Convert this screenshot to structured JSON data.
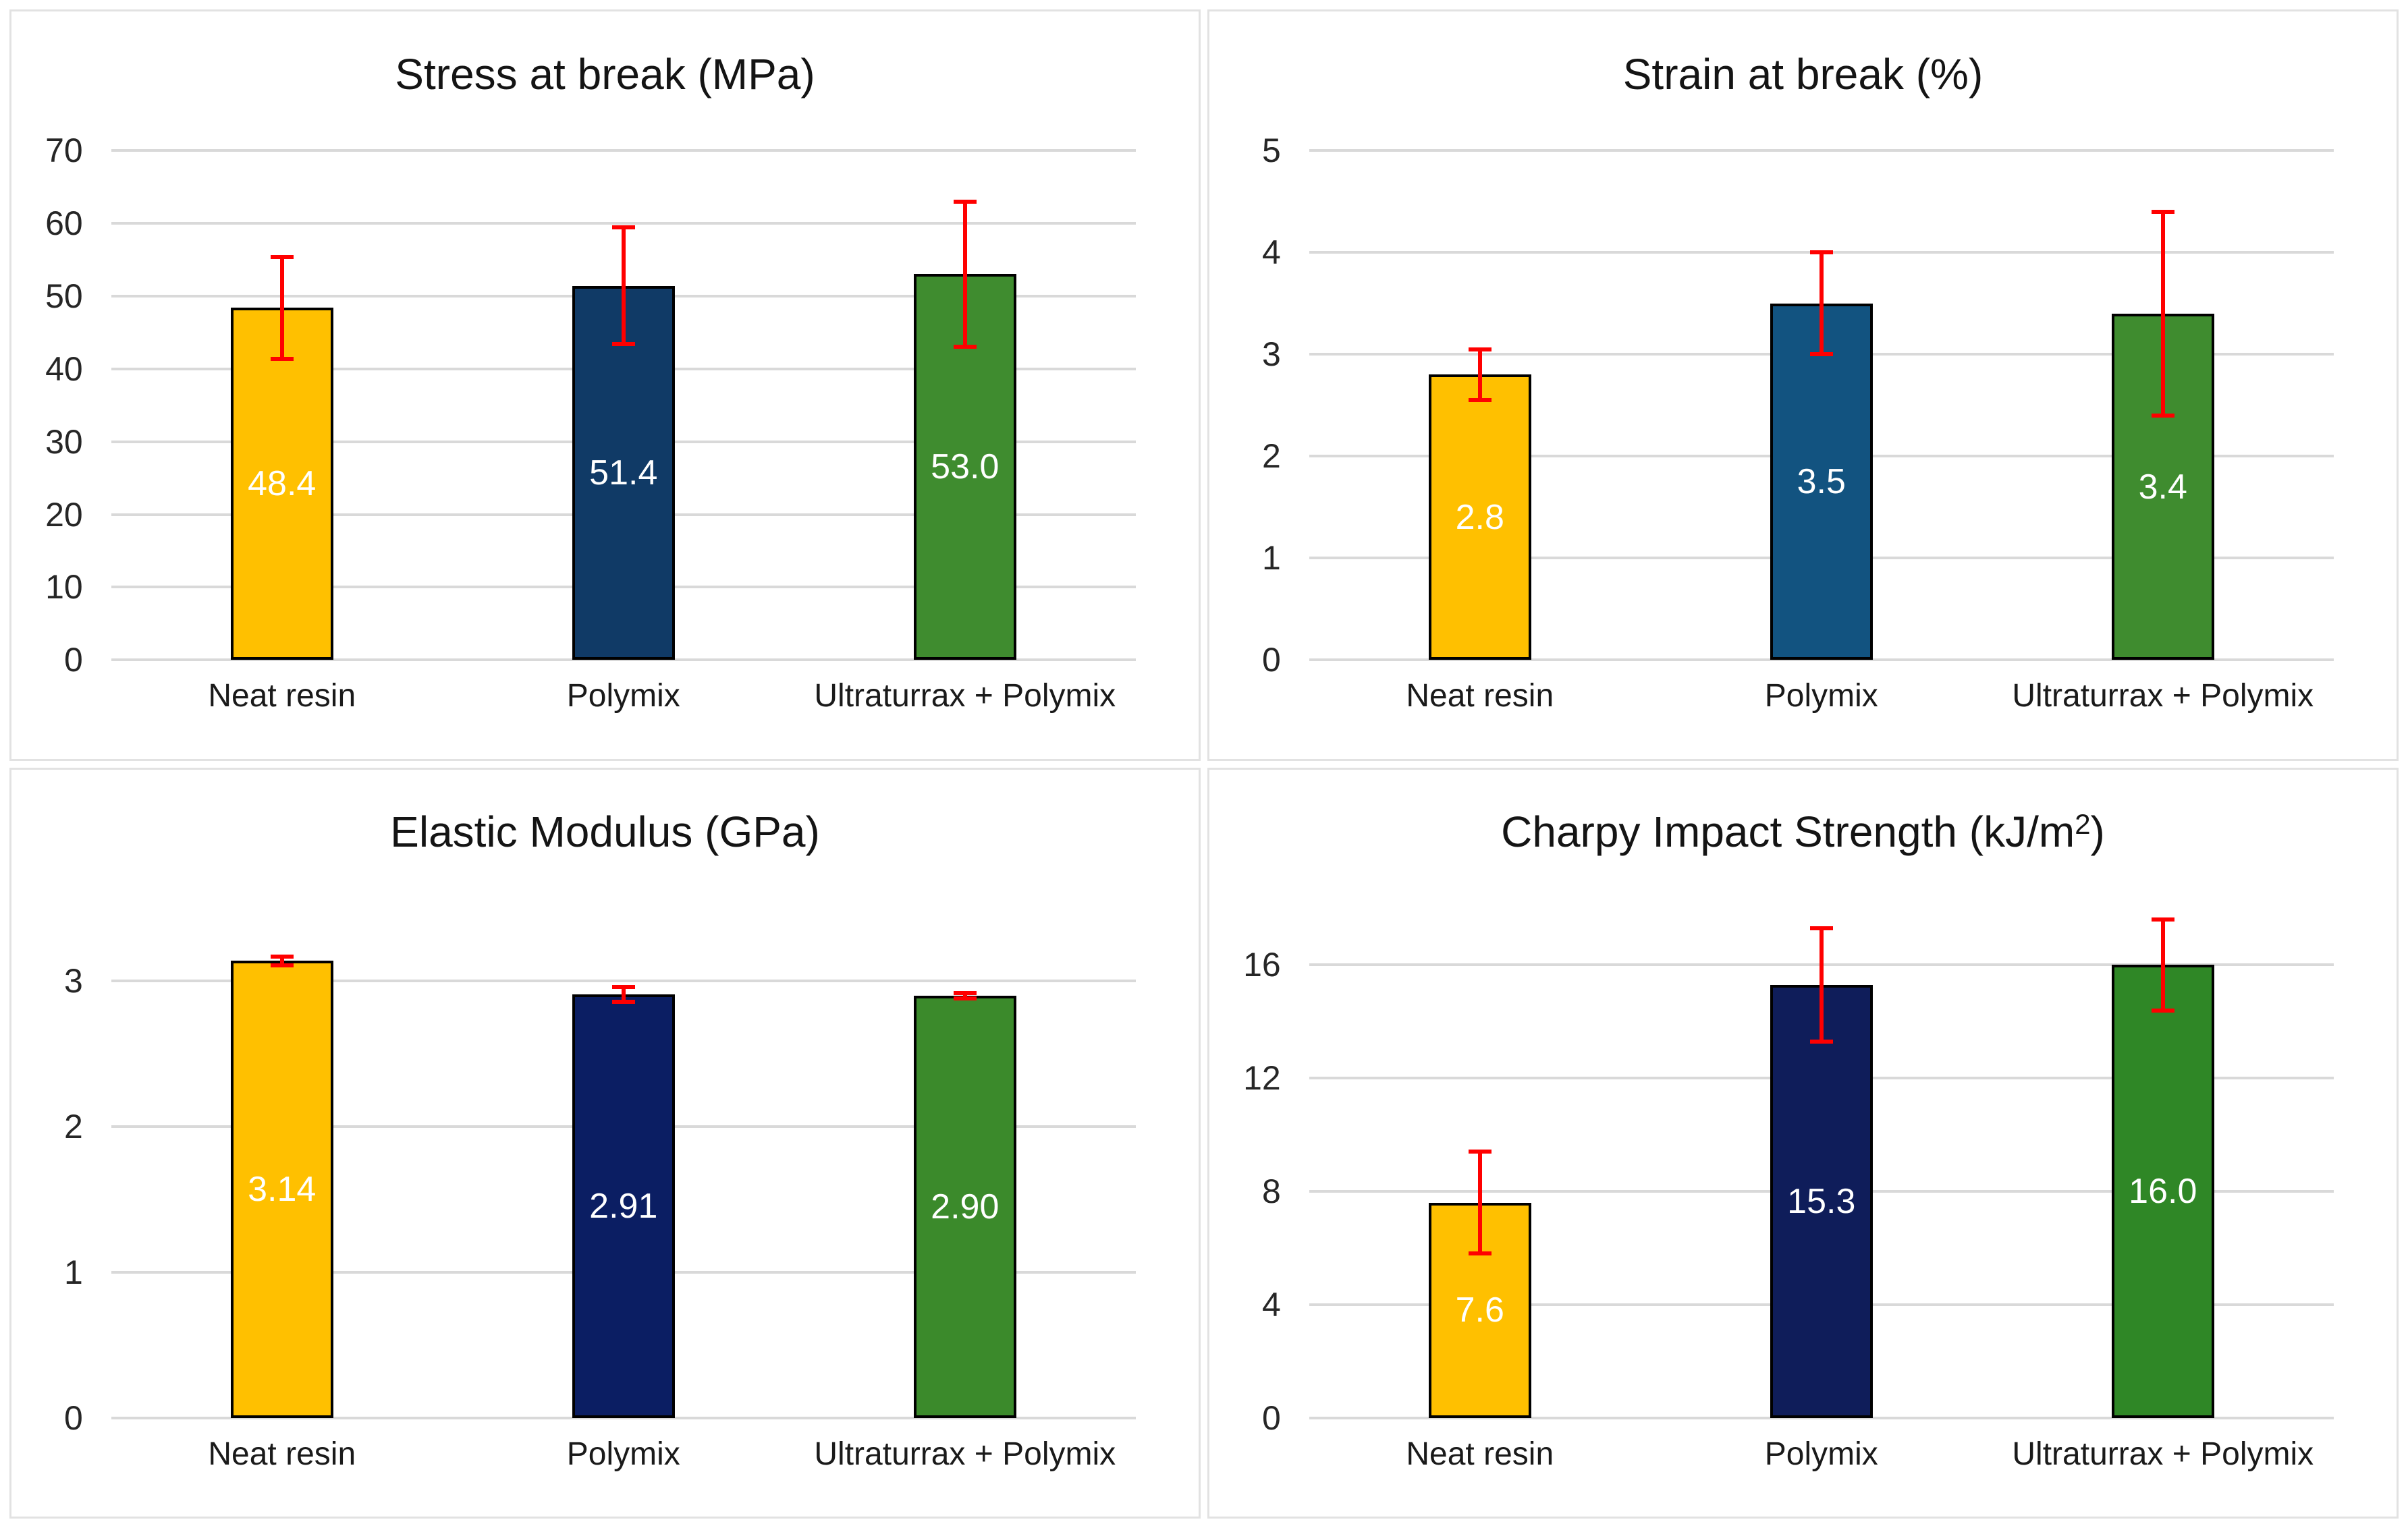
{
  "figure": {
    "background_color": "#FFFFFF",
    "panel_border_color": "#E2E2E2",
    "gridline_color": "#D9D9D9",
    "axis_text_color": "#262626",
    "title_color": "#141414",
    "bar_outline_color": "#000000",
    "error_bar_color": "#FF0000",
    "data_label_color": "#FFFFFF",
    "yellow": "#FFC000"
  },
  "chart_data": [
    {
      "type": "bar",
      "panel": "stress-at-break",
      "title": "Stress at break (MPa)",
      "title_parts": [
        {
          "text": "Stress at break (MPa)"
        }
      ],
      "categories": [
        "Neat resin",
        "Polymix",
        "Ultraturrax + Polymix"
      ],
      "values": [
        48.4,
        51.4,
        53.0
      ],
      "data_labels": [
        "48.4",
        "51.4",
        "53.0"
      ],
      "error_bars": [
        7.0,
        8.0,
        10.0
      ],
      "bar_colors": [
        "#FFC000",
        "#103A66",
        "#3F8C2F"
      ],
      "ylim": [
        0,
        70
      ],
      "yticks": [
        0,
        10,
        20,
        30,
        40,
        50,
        60,
        70
      ],
      "grid": true,
      "legend": "none"
    },
    {
      "type": "bar",
      "panel": "strain-at-break",
      "title": "Strain at break (%)",
      "title_parts": [
        {
          "text": "Strain at break (%)"
        }
      ],
      "categories": [
        "Neat resin",
        "Polymix",
        "Ultraturrax + Polymix"
      ],
      "values": [
        2.8,
        3.5,
        3.4
      ],
      "data_labels": [
        "2.8",
        "3.5",
        "3.4"
      ],
      "error_bars": [
        0.25,
        0.5,
        1.0
      ],
      "bar_colors": [
        "#FFC000",
        "#125380",
        "#3F8C2F"
      ],
      "ylim": [
        0,
        5
      ],
      "yticks": [
        0,
        1,
        2,
        3,
        4,
        5
      ],
      "grid": true,
      "legend": "none"
    },
    {
      "type": "bar",
      "panel": "elastic-modulus",
      "title": "Elastic Modulus (GPa)",
      "title_parts": [
        {
          "text": "Elastic Modulus (GPa)"
        }
      ],
      "categories": [
        "Neat resin",
        "Polymix",
        "Ultraturrax + Polymix"
      ],
      "values": [
        3.14,
        2.91,
        2.9
      ],
      "data_labels": [
        "3.14",
        "2.91",
        "2.90"
      ],
      "error_bars": [
        0.03,
        0.05,
        0.02
      ],
      "bar_colors": [
        "#FFC000",
        "#0B1E63",
        "#3B8A2B"
      ],
      "ylim": [
        0,
        3.5
      ],
      "yticks": [
        0,
        1,
        2,
        3
      ],
      "grid": true,
      "legend": "none"
    },
    {
      "type": "bar",
      "panel": "charpy-impact-strength",
      "title": "Charpy Impact Strength (kJ/m2)",
      "title_parts": [
        {
          "text": "Charpy Impact Strength (kJ/m"
        },
        {
          "text": "2",
          "sup": true
        },
        {
          "text": ")"
        }
      ],
      "categories": [
        "Neat resin",
        "Polymix",
        "Ultraturrax + Polymix"
      ],
      "values": [
        7.6,
        15.3,
        16.0
      ],
      "data_labels": [
        "7.6",
        "15.3",
        "16.0"
      ],
      "error_bars": [
        1.8,
        2.0,
        1.6
      ],
      "bar_colors": [
        "#FFC000",
        "#0F1D5A",
        "#2F8726"
      ],
      "ylim": [
        0,
        18
      ],
      "yticks": [
        0,
        4,
        8,
        12,
        16
      ],
      "grid": true,
      "legend": "none"
    }
  ]
}
